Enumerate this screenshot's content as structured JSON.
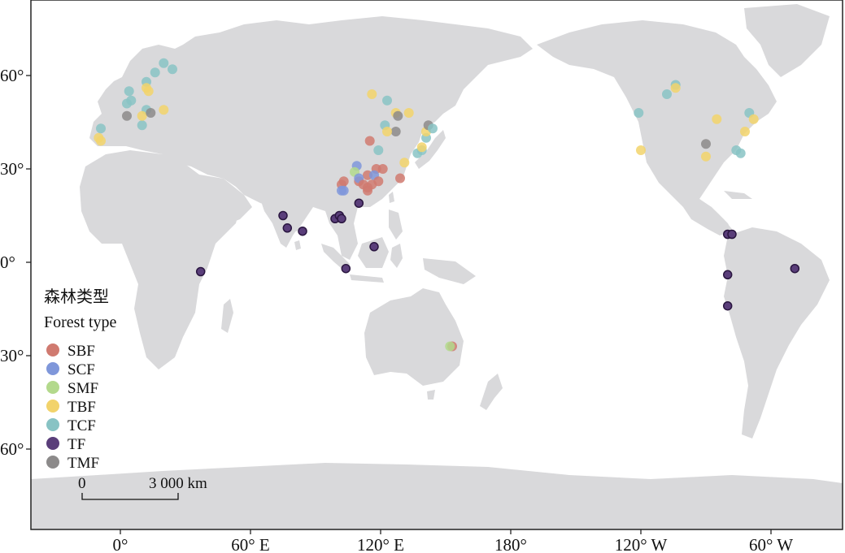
{
  "map": {
    "x_ticks": [
      {
        "lon": 0,
        "label": "0°"
      },
      {
        "lon": 60,
        "label": "60° E"
      },
      {
        "lon": 120,
        "label": "120° E"
      },
      {
        "lon": 180,
        "label": "180°"
      },
      {
        "lon": 240,
        "label": "120° W"
      },
      {
        "lon": 300,
        "label": "60° W"
      }
    ],
    "y_ticks": [
      {
        "lat": 60,
        "label": "60°"
      },
      {
        "lat": 30,
        "label": "30°"
      },
      {
        "lat": 0,
        "label": "0°"
      },
      {
        "lat": -30,
        "label": "30°"
      },
      {
        "lat": -60,
        "label": "60°"
      }
    ],
    "land_color": "#d9d9db",
    "frame_color": "#222222"
  },
  "legend": {
    "title_cn": "森林类型",
    "title_en": "Forest type",
    "items": [
      {
        "code": "SBF",
        "label": "SBF",
        "color": "#d07a70"
      },
      {
        "code": "SCF",
        "label": "SCF",
        "color": "#7f97da"
      },
      {
        "code": "SMF",
        "label": "SMF",
        "color": "#b3d98c"
      },
      {
        "code": "TBF",
        "label": "TBF",
        "color": "#f2d36b"
      },
      {
        "code": "TCF",
        "label": "TCF",
        "color": "#88c3c4"
      },
      {
        "code": "TF",
        "label": "TF",
        "color": "#5a3e7a"
      },
      {
        "code": "TMF",
        "label": "TMF",
        "color": "#8c8a8a"
      }
    ]
  },
  "scale_bar": {
    "start_label": "0",
    "end_label": "3 000 km"
  },
  "sites": [
    {
      "type": "TCF",
      "lon": 4,
      "lat": 55
    },
    {
      "type": "TCF",
      "lon": 3,
      "lat": 51
    },
    {
      "type": "TCF",
      "lon": 5,
      "lat": 52
    },
    {
      "type": "TCF",
      "lon": 12,
      "lat": 58
    },
    {
      "type": "TCF",
      "lon": 16,
      "lat": 61
    },
    {
      "type": "TCF",
      "lon": 20,
      "lat": 64
    },
    {
      "type": "TCF",
      "lon": 24,
      "lat": 62
    },
    {
      "type": "TCF",
      "lon": 12,
      "lat": 49
    },
    {
      "type": "TCF",
      "lon": 10,
      "lat": 44
    },
    {
      "type": "TCF",
      "lon": -9,
      "lat": 43
    },
    {
      "type": "TBF",
      "lon": -10,
      "lat": 40
    },
    {
      "type": "TBF",
      "lon": -9,
      "lat": 39
    },
    {
      "type": "TBF",
      "lon": 10,
      "lat": 47
    },
    {
      "type": "TBF",
      "lon": 12,
      "lat": 56
    },
    {
      "type": "TBF",
      "lon": 13,
      "lat": 55
    },
    {
      "type": "TBF",
      "lon": 20,
      "lat": 49
    },
    {
      "type": "TMF",
      "lon": 3,
      "lat": 47
    },
    {
      "type": "TMF",
      "lon": 14,
      "lat": 48
    },
    {
      "type": "TBF",
      "lon": 116,
      "lat": 54
    },
    {
      "type": "TCF",
      "lon": 123,
      "lat": 52
    },
    {
      "type": "TBF",
      "lon": 127,
      "lat": 48
    },
    {
      "type": "TBF",
      "lon": 133,
      "lat": 48
    },
    {
      "type": "TMF",
      "lon": 128,
      "lat": 47
    },
    {
      "type": "TMF",
      "lon": 127,
      "lat": 42
    },
    {
      "type": "TCF",
      "lon": 122,
      "lat": 44
    },
    {
      "type": "TBF",
      "lon": 123,
      "lat": 42
    },
    {
      "type": "TCF",
      "lon": 119,
      "lat": 36
    },
    {
      "type": "TBF",
      "lon": 131,
      "lat": 32
    },
    {
      "type": "TCF",
      "lon": 137,
      "lat": 35
    },
    {
      "type": "TCF",
      "lon": 139,
      "lat": 36
    },
    {
      "type": "TBF",
      "lon": 139,
      "lat": 37
    },
    {
      "type": "TCF",
      "lon": 141,
      "lat": 40
    },
    {
      "type": "TBF",
      "lon": 141,
      "lat": 42
    },
    {
      "type": "TMF",
      "lon": 142,
      "lat": 44
    },
    {
      "type": "TCF",
      "lon": 144,
      "lat": 43
    },
    {
      "type": "SBF",
      "lon": 115,
      "lat": 39
    },
    {
      "type": "SCF",
      "lon": 109,
      "lat": 31
    },
    {
      "type": "SMF",
      "lon": 108,
      "lat": 29
    },
    {
      "type": "SBF",
      "lon": 118,
      "lat": 30
    },
    {
      "type": "SBF",
      "lon": 121,
      "lat": 30
    },
    {
      "type": "SBF",
      "lon": 114,
      "lat": 28
    },
    {
      "type": "SCF",
      "lon": 117,
      "lat": 28
    },
    {
      "type": "SBF",
      "lon": 110,
      "lat": 26
    },
    {
      "type": "SCF",
      "lon": 110,
      "lat": 27
    },
    {
      "type": "SBF",
      "lon": 112,
      "lat": 25
    },
    {
      "type": "SBF",
      "lon": 114,
      "lat": 24
    },
    {
      "type": "SBF",
      "lon": 116,
      "lat": 25
    },
    {
      "type": "SBF",
      "lon": 119,
      "lat": 26
    },
    {
      "type": "SBF",
      "lon": 114,
      "lat": 23
    },
    {
      "type": "SBF",
      "lon": 102,
      "lat": 25
    },
    {
      "type": "SBF",
      "lon": 103,
      "lat": 26
    },
    {
      "type": "SCF",
      "lon": 102,
      "lat": 23
    },
    {
      "type": "SCF",
      "lon": 103,
      "lat": 23
    },
    {
      "type": "SBF",
      "lon": 129,
      "lat": 27
    },
    {
      "type": "TF",
      "lon": 75,
      "lat": 15
    },
    {
      "type": "TF",
      "lon": 77,
      "lat": 11
    },
    {
      "type": "TF",
      "lon": 84,
      "lat": 10
    },
    {
      "type": "TF",
      "lon": 99,
      "lat": 14
    },
    {
      "type": "TF",
      "lon": 101,
      "lat": 15
    },
    {
      "type": "TF",
      "lon": 102,
      "lat": 14
    },
    {
      "type": "TF",
      "lon": 110,
      "lat": 19
    },
    {
      "type": "TF",
      "lon": 117,
      "lat": 5
    },
    {
      "type": "TF",
      "lon": 104,
      "lat": -2
    },
    {
      "type": "TF",
      "lon": 37,
      "lat": -3
    },
    {
      "type": "SBF",
      "lon": 153,
      "lat": -27
    },
    {
      "type": "SMF",
      "lon": 152,
      "lat": -27
    },
    {
      "type": "TCF",
      "lon": 239,
      "lat": 48
    },
    {
      "type": "TCF",
      "lon": 252,
      "lat": 54
    },
    {
      "type": "TCF",
      "lon": 256,
      "lat": 57
    },
    {
      "type": "TBF",
      "lon": 256,
      "lat": 56
    },
    {
      "type": "TBF",
      "lon": 240,
      "lat": 36
    },
    {
      "type": "TBF",
      "lon": 275,
      "lat": 46
    },
    {
      "type": "TMF",
      "lon": 270,
      "lat": 38
    },
    {
      "type": "TBF",
      "lon": 270,
      "lat": 34
    },
    {
      "type": "TCF",
      "lon": 290,
      "lat": 48
    },
    {
      "type": "TBF",
      "lon": 292,
      "lat": 46
    },
    {
      "type": "TBF",
      "lon": 288,
      "lat": 42
    },
    {
      "type": "TCF",
      "lon": 284,
      "lat": 36
    },
    {
      "type": "TCF",
      "lon": 286,
      "lat": 35
    },
    {
      "type": "TF",
      "lon": 280,
      "lat": 9
    },
    {
      "type": "TF",
      "lon": 282,
      "lat": 9
    },
    {
      "type": "TF",
      "lon": 280,
      "lat": -4
    },
    {
      "type": "TF",
      "lon": 280,
      "lat": -14
    },
    {
      "type": "TF",
      "lon": 311,
      "lat": -2
    }
  ]
}
